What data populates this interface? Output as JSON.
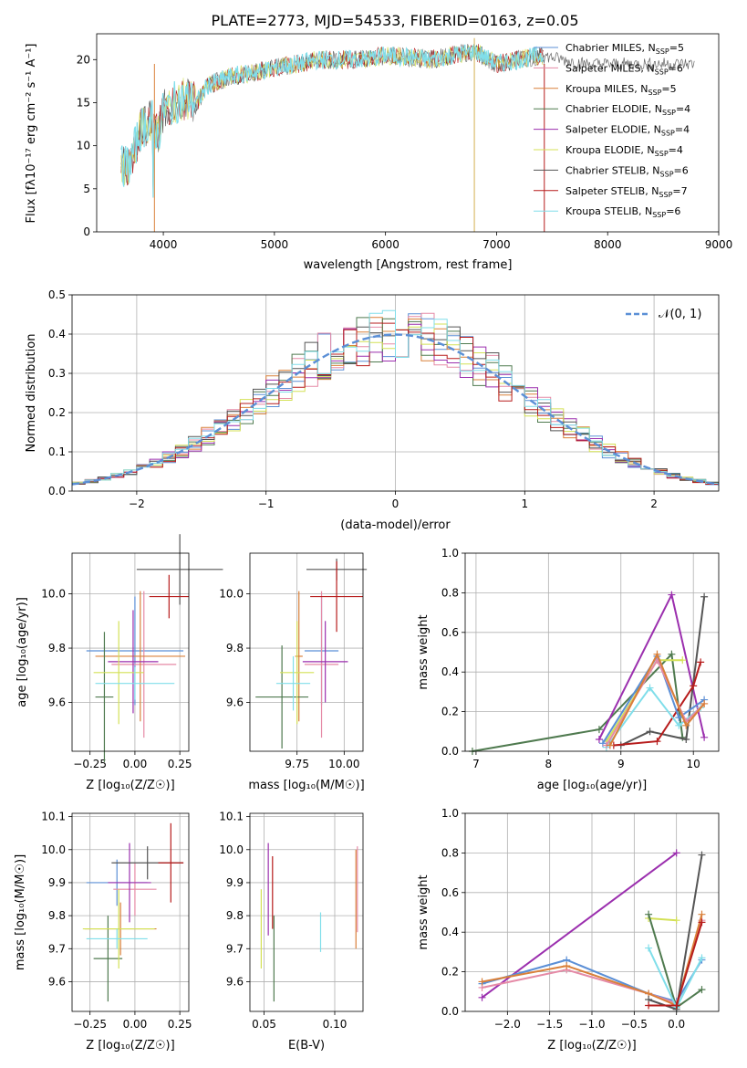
{
  "chart_data": [
    {
      "type": "line",
      "title": "PLATE=2773, MJD=54533, FIBERID=0163, z=0.05",
      "xlabel": "wavelength [Angstrom, rest frame]",
      "ylabel": "Flux [f_λ10^-17 erg cm^-2 s^-1 A^-1]",
      "xlim": [
        3400,
        9000
      ],
      "ylim": [
        0,
        23
      ],
      "xticks": [
        "4000",
        "5000",
        "6000",
        "7000",
        "8000",
        "9000"
      ],
      "yticks": [
        "0",
        "5",
        "10",
        "15",
        "20"
      ],
      "grid": false,
      "legend_position": "right",
      "series": [
        {
          "name": "Chabrier MILES, N_SSP=5",
          "color": "#5b8fd6"
        },
        {
          "name": "Salpeter MILES, N_SSP=6",
          "color": "#e58aa6"
        },
        {
          "name": "Kroupa MILES, N_SSP=5",
          "color": "#d9803a"
        },
        {
          "name": "Chabrier ELODIE, N_SSP=4",
          "color": "#4f7a4f"
        },
        {
          "name": "Salpeter ELODIE, N_SSP=4",
          "color": "#9b2fae"
        },
        {
          "name": "Kroupa ELODIE, N_SSP=4",
          "color": "#d4e157"
        },
        {
          "name": "Chabrier STELIB, N_SSP=6",
          "color": "#555555"
        },
        {
          "name": "Salpeter STELIB, N_SSP=7",
          "color": "#b71c1c"
        },
        {
          "name": "Kroupa STELIB, N_SSP=6",
          "color": "#80deea"
        }
      ],
      "legend": [
        {
          "name": "Chabrier MILES, N",
          "sub": "SSP",
          "val": "=5",
          "color": "#5b8fd6"
        },
        {
          "name": "Salpeter MILES, N",
          "sub": "SSP",
          "val": "=6",
          "color": "#e58aa6"
        },
        {
          "name": "Kroupa MILES, N",
          "sub": "SSP",
          "val": "=5",
          "color": "#d9803a"
        },
        {
          "name": "Chabrier ELODIE, N",
          "sub": "SSP",
          "val": "=4",
          "color": "#4f7a4f"
        },
        {
          "name": "Salpeter ELODIE, N",
          "sub": "SSP",
          "val": "=4",
          "color": "#9b2fae"
        },
        {
          "name": "Kroupa ELODIE, N",
          "sub": "SSP",
          "val": "=4",
          "color": "#d4e157"
        },
        {
          "name": "Chabrier STELIB, N",
          "sub": "SSP",
          "val": "=6",
          "color": "#555555"
        },
        {
          "name": "Salpeter STELIB, N",
          "sub": "SSP",
          "val": "=7",
          "color": "#b71c1c"
        },
        {
          "name": "Kroupa STELIB, N",
          "sub": "SSP",
          "val": "=6",
          "color": "#80deea"
        }
      ],
      "spectrum": {
        "x": [
          3620,
          3700,
          3800,
          3900,
          3950,
          4000,
          4100,
          4200,
          4300,
          4400,
          4500,
          4600,
          4800,
          5000,
          5200,
          5400,
          5600,
          5800,
          6000,
          6200,
          6400,
          6600,
          6800,
          7000,
          7200,
          7400,
          7600,
          7800,
          8000,
          8200,
          8400,
          8600,
          8800
        ],
        "y": [
          7.5,
          8.0,
          12.0,
          13.0,
          11.0,
          14.0,
          15.0,
          15.5,
          15.0,
          17.0,
          17.5,
          18.0,
          18.5,
          19.0,
          19.5,
          20.0,
          20.0,
          20.0,
          20.5,
          20.3,
          20.0,
          20.5,
          21.0,
          19.5,
          20.0,
          20.5,
          20.0,
          19.5,
          19.5,
          19.5,
          19.5,
          19.5,
          19.5
        ]
      }
    },
    {
      "type": "line",
      "xlabel": "(data-model)/error",
      "ylabel": "Normed distribution",
      "xlim": [
        -2.5,
        2.5
      ],
      "ylim": [
        0,
        0.5
      ],
      "xticks": [
        "−2",
        "−1",
        "0",
        "1",
        "2"
      ],
      "yticks": [
        "0.0",
        "0.1",
        "0.2",
        "0.3",
        "0.4",
        "0.5"
      ],
      "grid": true,
      "legend_position": "top-right",
      "reference": {
        "name": "𝒩(0, 1)",
        "color": "#5b8fd6"
      }
    },
    {
      "type": "scatter",
      "xlabel": "Z [log10(Z/Z☉)]",
      "ylabel": "age  [log10(age/yr)]",
      "xlim": [
        -0.35,
        0.3
      ],
      "ylim": [
        9.42,
        10.15
      ],
      "xticks": [
        "−0.25",
        "0.00",
        "0.25"
      ],
      "yticks": [
        "9.6",
        "9.8",
        "10.0"
      ],
      "grid": true,
      "points": [
        {
          "x": 0.0,
          "y": 9.79,
          "xerr": 0.27,
          "yerr": 0.2,
          "color": "#5b8fd6"
        },
        {
          "x": 0.05,
          "y": 9.74,
          "xerr": 0.18,
          "yerr": 0.27,
          "color": "#e58aa6"
        },
        {
          "x": 0.03,
          "y": 9.77,
          "xerr": 0.25,
          "yerr": 0.24,
          "color": "#d9803a"
        },
        {
          "x": -0.17,
          "y": 9.62,
          "xerr": 0.05,
          "yerr": 0.24,
          "color": "#4f7a4f"
        },
        {
          "x": -0.01,
          "y": 9.75,
          "xerr": 0.14,
          "yerr": 0.19,
          "color": "#9b2fae"
        },
        {
          "x": -0.09,
          "y": 9.71,
          "xerr": 0.14,
          "yerr": 0.19,
          "color": "#d4e157"
        },
        {
          "x": 0.25,
          "y": 10.09,
          "xerr": 0.24,
          "yerr": 0.13,
          "color": "#555555"
        },
        {
          "x": 0.19,
          "y": 9.99,
          "xerr": 0.11,
          "yerr": 0.08,
          "color": "#b71c1c"
        },
        {
          "x": 0.0,
          "y": 9.67,
          "xerr": 0.22,
          "yerr": 0.06,
          "color": "#80deea"
        }
      ]
    },
    {
      "type": "scatter",
      "xlabel": "mass [log10(M/M☉)]",
      "xlim": [
        9.5,
        10.1
      ],
      "ylim": [
        9.42,
        10.15
      ],
      "xticks": [
        "9.75",
        "10.00"
      ],
      "yticks": [
        "9.6",
        "9.8",
        "10.0"
      ],
      "grid": true,
      "points": [
        {
          "x": 9.88,
          "y": 9.79,
          "xerr": 0.09,
          "yerr": 0.2,
          "color": "#5b8fd6"
        },
        {
          "x": 9.88,
          "y": 9.74,
          "xerr": 0.09,
          "yerr": 0.27,
          "color": "#e58aa6"
        },
        {
          "x": 9.76,
          "y": 9.77,
          "xerr": 0.02,
          "yerr": 0.24,
          "color": "#d9803a"
        },
        {
          "x": 9.67,
          "y": 9.62,
          "xerr": 0.14,
          "yerr": 0.19,
          "color": "#4f7a4f"
        },
        {
          "x": 9.9,
          "y": 9.75,
          "xerr": 0.12,
          "yerr": 0.15,
          "color": "#9b2fae"
        },
        {
          "x": 9.75,
          "y": 9.71,
          "xerr": 0.09,
          "yerr": 0.19,
          "color": "#d4e157"
        },
        {
          "x": 9.96,
          "y": 10.09,
          "xerr": 0.16,
          "yerr": 0.04,
          "color": "#555555"
        },
        {
          "x": 9.96,
          "y": 9.99,
          "xerr": 0.14,
          "yerr": 0.13,
          "color": "#b71c1c"
        },
        {
          "x": 9.73,
          "y": 9.67,
          "xerr": 0.09,
          "yerr": 0.1,
          "color": "#80deea"
        }
      ]
    },
    {
      "type": "line",
      "xlabel": "age  [log10(age/yr)]",
      "ylabel": "mass weight",
      "xlim": [
        6.85,
        10.35
      ],
      "ylim": [
        0,
        1
      ],
      "xticks": [
        "7",
        "8",
        "9",
        "10"
      ],
      "yticks": [
        "0.0",
        "0.2",
        "0.4",
        "0.6",
        "0.8",
        "1.0"
      ],
      "grid": true,
      "series": [
        {
          "color": "#4f7a4f",
          "x": [
            6.95,
            8.7,
            9.7,
            9.85
          ],
          "y": [
            0.0,
            0.11,
            0.49,
            0.07
          ]
        },
        {
          "color": "#9b2fae",
          "x": [
            8.7,
            9.7,
            10.15
          ],
          "y": [
            0.06,
            0.79,
            0.07
          ]
        },
        {
          "color": "#d4e157",
          "x": [
            8.8,
            9.5,
            9.85
          ],
          "y": [
            0.05,
            0.46,
            0.46
          ]
        },
        {
          "color": "#555555",
          "x": [
            9.0,
            9.4,
            9.9,
            10.15
          ],
          "y": [
            0.03,
            0.1,
            0.06,
            0.78
          ]
        },
        {
          "color": "#b71c1c",
          "x": [
            8.9,
            9.5,
            10.0,
            10.1
          ],
          "y": [
            0.03,
            0.05,
            0.33,
            0.45
          ]
        },
        {
          "color": "#80deea",
          "x": [
            8.8,
            9.4,
            9.8,
            10.1
          ],
          "y": [
            0.02,
            0.32,
            0.13,
            0.22
          ]
        },
        {
          "color": "#5b8fd6",
          "x": [
            8.75,
            9.5,
            9.8,
            10.15
          ],
          "y": [
            0.04,
            0.48,
            0.17,
            0.26
          ]
        },
        {
          "color": "#e58aa6",
          "x": [
            8.8,
            9.5,
            9.9,
            10.15
          ],
          "y": [
            0.03,
            0.46,
            0.15,
            0.24
          ]
        },
        {
          "color": "#d9803a",
          "x": [
            8.85,
            9.5,
            9.9,
            10.15
          ],
          "y": [
            0.03,
            0.49,
            0.13,
            0.24
          ]
        }
      ]
    },
    {
      "type": "scatter",
      "xlabel": "Z [log10(Z/Z☉)]",
      "ylabel": "mass [log10(M/M☉)]",
      "xlim": [
        -0.35,
        0.3
      ],
      "ylim": [
        9.51,
        10.11
      ],
      "xticks": [
        "−0.25",
        "0.00",
        "0.25"
      ],
      "yticks": [
        "9.6",
        "9.7",
        "9.8",
        "9.9",
        "10.0",
        "10.1"
      ],
      "grid": true,
      "points": [
        {
          "x": -0.1,
          "y": 9.9,
          "xerr": 0.17,
          "yerr": 0.07,
          "color": "#5b8fd6"
        },
        {
          "x": 0.0,
          "y": 9.88,
          "xerr": 0.12,
          "yerr": 0.08,
          "color": "#e58aa6"
        },
        {
          "x": -0.08,
          "y": 9.76,
          "xerr": 0.2,
          "yerr": 0.08,
          "color": "#d9803a"
        },
        {
          "x": -0.15,
          "y": 9.67,
          "xerr": 0.08,
          "yerr": 0.13,
          "color": "#4f7a4f"
        },
        {
          "x": -0.03,
          "y": 9.9,
          "xerr": 0.12,
          "yerr": 0.12,
          "color": "#9b2fae"
        },
        {
          "x": -0.09,
          "y": 9.76,
          "xerr": 0.2,
          "yerr": 0.12,
          "color": "#d4e157"
        },
        {
          "x": 0.07,
          "y": 9.96,
          "xerr": 0.2,
          "yerr": 0.05,
          "color": "#555555"
        },
        {
          "x": 0.2,
          "y": 9.96,
          "xerr": 0.07,
          "yerr": 0.12,
          "color": "#b71c1c"
        },
        {
          "x": -0.1,
          "y": 9.73,
          "xerr": 0.17,
          "yerr": 0.03,
          "color": "#80deea"
        }
      ]
    },
    {
      "type": "scatter",
      "xlabel": "E(B-V)",
      "xlim": [
        0.04,
        0.12
      ],
      "ylim": [
        9.51,
        10.11
      ],
      "xticks": [
        "0.05",
        "0.10"
      ],
      "yticks": [
        "9.6",
        "9.7",
        "9.8",
        "9.9",
        "10.0",
        "10.1"
      ],
      "grid": true,
      "points": [
        {
          "x": 0.053,
          "y": 9.88,
          "yerr": 0.14,
          "color": "#9b2fae"
        },
        {
          "x": 0.056,
          "y": 9.87,
          "yerr": 0.11,
          "color": "#b71c1c"
        },
        {
          "x": 0.048,
          "y": 9.76,
          "yerr": 0.12,
          "color": "#d4e157"
        },
        {
          "x": 0.057,
          "y": 9.67,
          "yerr": 0.13,
          "color": "#4f7a4f"
        },
        {
          "x": 0.09,
          "y": 9.75,
          "yerr": 0.06,
          "color": "#80deea"
        },
        {
          "x": 0.115,
          "y": 9.85,
          "yerr": 0.15,
          "color": "#d9803a"
        },
        {
          "x": 0.116,
          "y": 9.88,
          "yerr": 0.13,
          "color": "#e58aa6"
        }
      ]
    },
    {
      "type": "line",
      "xlabel": "Z [log10(Z/Z☉)]",
      "ylabel": "mass weight",
      "xlim": [
        -2.5,
        0.5
      ],
      "ylim": [
        0,
        1
      ],
      "xticks": [
        "−2.0",
        "−1.5",
        "−1.0",
        "−0.5",
        "0.0"
      ],
      "yticks": [
        "0.0",
        "0.2",
        "0.4",
        "0.6",
        "0.8",
        "1.0"
      ],
      "grid": true,
      "series": [
        {
          "color": "#9b2fae",
          "x": [
            -2.3,
            0.0
          ],
          "y": [
            0.07,
            0.8
          ]
        },
        {
          "color": "#5b8fd6",
          "x": [
            -2.3,
            -1.3,
            -0.33,
            0.0,
            0.3
          ],
          "y": [
            0.14,
            0.26,
            0.09,
            0.05,
            0.26
          ]
        },
        {
          "color": "#e58aa6",
          "x": [
            -2.3,
            -1.3,
            -0.33,
            0.0,
            0.3
          ],
          "y": [
            0.12,
            0.21,
            0.09,
            0.04,
            0.46
          ]
        },
        {
          "color": "#d9803a",
          "x": [
            -2.3,
            -1.3,
            -0.33,
            0.0,
            0.3
          ],
          "y": [
            0.15,
            0.23,
            0.09,
            0.03,
            0.49
          ]
        },
        {
          "color": "#d4e157",
          "x": [
            -0.33,
            0.0
          ],
          "y": [
            0.47,
            0.46
          ]
        },
        {
          "color": "#4f7a4f",
          "x": [
            -0.33,
            0.0,
            0.3
          ],
          "y": [
            0.49,
            0.02,
            0.11
          ]
        },
        {
          "color": "#80deea",
          "x": [
            -0.33,
            0.0,
            0.3
          ],
          "y": [
            0.32,
            0.02,
            0.27
          ]
        },
        {
          "color": "#555555",
          "x": [
            -0.33,
            0.0,
            0.3
          ],
          "y": [
            0.06,
            0.01,
            0.79
          ]
        },
        {
          "color": "#b71c1c",
          "x": [
            -0.33,
            0.0,
            0.3
          ],
          "y": [
            0.03,
            0.03,
            0.45
          ]
        }
      ]
    }
  ]
}
